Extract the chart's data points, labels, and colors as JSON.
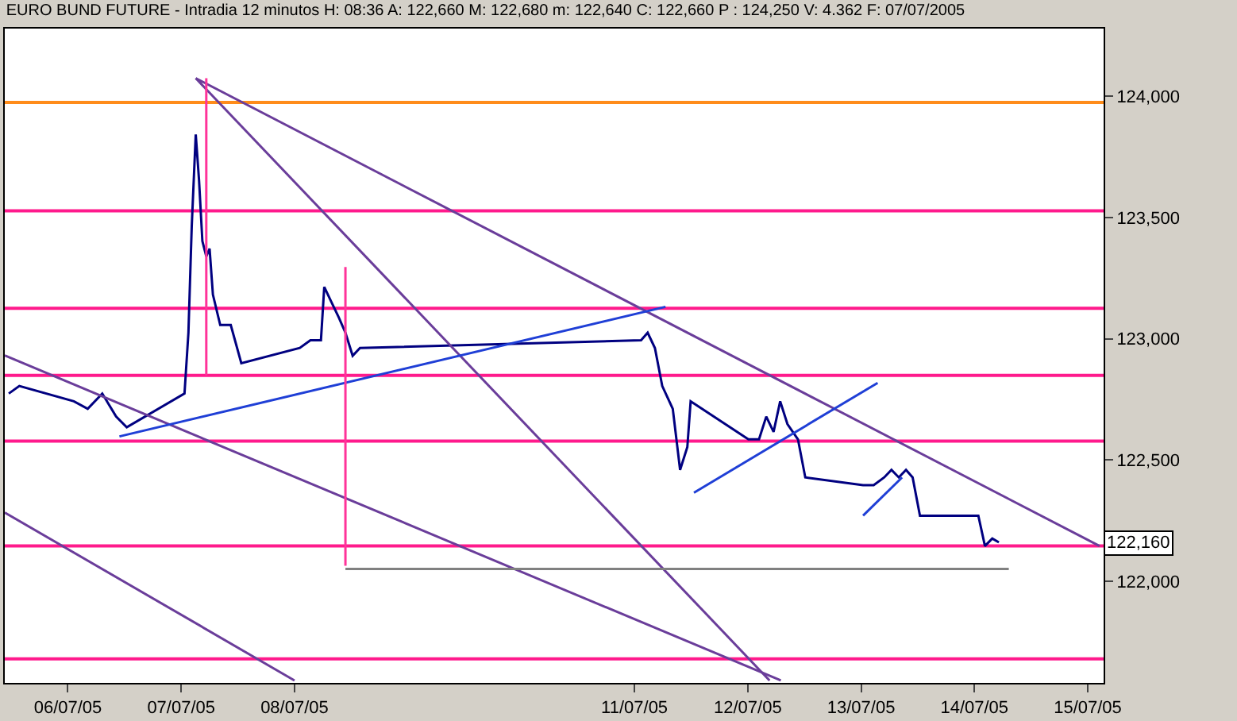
{
  "chart_data": {
    "type": "line",
    "title": "EURO BUND FUTURE - Intradia 12 minutos H: 08:36 A: 122,660 M: 122,680 m: 122,640 C: 122,660 P : 124,250 V: 4.362 F: 07/07/2005",
    "xlim": [
      "2005-07-05T18:38",
      "2005-07-15T11:22"
    ],
    "ylim": [
      121580,
      124280
    ],
    "xticks": [
      {
        "value": "2005-07-06T08:00",
        "label": "06/07/05"
      },
      {
        "value": "2005-07-07T08:00",
        "label": "07/07/05"
      },
      {
        "value": "2005-07-08T08:00",
        "label": "08/07/05"
      },
      {
        "value": "2005-07-11T08:00",
        "label": "11/07/05"
      },
      {
        "value": "2005-07-12T08:00",
        "label": "12/07/05"
      },
      {
        "value": "2005-07-13T08:00",
        "label": "13/07/05"
      },
      {
        "value": "2005-07-14T08:00",
        "label": "14/07/05"
      },
      {
        "value": "2005-07-15T08:00",
        "label": "15/07/05"
      }
    ],
    "yticks": [
      {
        "value": 122000,
        "label": "122,000"
      },
      {
        "value": 122500,
        "label": "122,500"
      },
      {
        "value": 123000,
        "label": "123,000"
      },
      {
        "value": 123500,
        "label": "123,500"
      },
      {
        "value": 124000,
        "label": "124,000"
      }
    ],
    "series": [
      {
        "color": "#000080",
        "x": [
          "2005-07-05T19:29",
          "2005-07-05T21:43",
          "2005-07-06T09:16",
          "2005-07-06T12:12",
          "2005-07-06T15:17",
          "2005-07-06T18:13",
          "2005-07-06T20:28",
          "2005-07-07T08:42",
          "2005-07-07T09:32",
          "2005-07-07T10:14",
          "2005-07-07T11:05",
          "2005-07-07T11:47",
          "2005-07-07T12:29",
          "2005-07-07T13:19",
          "2005-07-07T14:01",
          "2005-07-07T14:43",
          "2005-07-07T16:16",
          "2005-07-07T18:30",
          "2005-07-07T20:44",
          "2005-07-08T09:07",
          "2005-07-08T11:22",
          "2005-07-08T13:36",
          "2005-07-08T14:18",
          "2005-07-08T15:50",
          "2005-07-08T17:23",
          "2005-07-08T18:47",
          "2005-07-08T20:19",
          "2005-07-08T21:52",
          "2005-07-11T09:24",
          "2005-07-11T10:48",
          "2005-07-11T12:20",
          "2005-07-11T13:53",
          "2005-07-11T16:07",
          "2005-07-11T17:40",
          "2005-07-11T19:12",
          "2005-07-11T19:54",
          "2005-07-12T08:08",
          "2005-07-12T10:23",
          "2005-07-12T11:55",
          "2005-07-12T13:28",
          "2005-07-12T14:52",
          "2005-07-12T16:24",
          "2005-07-12T18:38",
          "2005-07-12T20:11",
          "2005-07-13T08:25",
          "2005-07-13T10:40",
          "2005-07-13T12:54",
          "2005-07-13T14:26",
          "2005-07-13T15:59",
          "2005-07-13T17:31",
          "2005-07-13T18:55",
          "2005-07-13T20:28",
          "2005-07-14T08:50",
          "2005-07-14T10:14",
          "2005-07-14T11:47",
          "2005-07-14T13:11"
        ],
        "values": [
          122774,
          122805,
          122742,
          122711,
          122774,
          122679,
          122635,
          122774,
          123025,
          123465,
          123843,
          123654,
          123403,
          123340,
          123372,
          123182,
          123057,
          123057,
          122899,
          122962,
          122994,
          122994,
          123214,
          123151,
          123088,
          123025,
          122930,
          122962,
          122994,
          123025,
          122962,
          122805,
          122711,
          122459,
          122553,
          122742,
          122585,
          122585,
          122679,
          122616,
          122742,
          122648,
          122585,
          122428,
          122396,
          122396,
          122428,
          122459,
          122428,
          122459,
          122428,
          122270,
          122270,
          122145,
          122176,
          122160
        ]
      },
      {
        "type": "line",
        "color": "#6a3d9a",
        "x": [
          "2005-07-07T11:05",
          "2005-07-15T10:31"
        ],
        "values": [
          124075,
          122145
        ]
      },
      {
        "type": "line",
        "color": "#6a3d9a",
        "x": [
          "2005-07-07T11:05",
          "2005-07-12T12:37"
        ],
        "values": [
          124075,
          121590
        ]
      },
      {
        "type": "line",
        "color": "#6a3d9a",
        "x": [
          "2005-07-05T18:38",
          "2005-07-12T15:00"
        ],
        "values": [
          122931,
          121590
        ]
      },
      {
        "type": "line",
        "color": "#6a3d9a",
        "x": [
          "2005-07-05T18:38",
          "2005-07-08T08:00"
        ],
        "values": [
          122283,
          121590
        ]
      },
      {
        "type": "line",
        "color": "#1f3fd6",
        "x": [
          "2005-07-06T18:55",
          "2005-07-11T14:35"
        ],
        "values": [
          122597,
          123132
        ]
      },
      {
        "type": "line",
        "color": "#1f3fd6",
        "x": [
          "2005-07-11T20:36",
          "2005-07-13T11:30"
        ],
        "values": [
          122365,
          122818
        ]
      },
      {
        "type": "line",
        "color": "#1f3fd6",
        "x": [
          "2005-07-13T08:25",
          "2005-07-13T16:41"
        ],
        "values": [
          122270,
          122428
        ]
      },
      {
        "type": "line",
        "color": "#808080",
        "x": [
          "2005-07-08T18:47",
          "2005-07-14T15:17"
        ],
        "values": [
          122050,
          122050
        ]
      },
      {
        "type": "line",
        "color": "#ff3399",
        "x": [
          "2005-07-07T13:19",
          "2005-07-07T13:19"
        ],
        "values": [
          124075,
          122849
        ]
      },
      {
        "type": "line",
        "color": "#ff3399",
        "x": [
          "2005-07-08T18:47",
          "2005-07-08T18:47"
        ],
        "values": [
          123296,
          122063
        ]
      }
    ],
    "ref_lines": [
      {
        "axis": "y",
        "value": 123975,
        "color": "#ff8c1a"
      },
      {
        "axis": "y",
        "value": 123528,
        "color": "#ff1a8c"
      },
      {
        "axis": "y",
        "value": 123126,
        "color": "#ff1a8c"
      },
      {
        "axis": "y",
        "value": 122849,
        "color": "#ff1a8c"
      },
      {
        "axis": "y",
        "value": 122578,
        "color": "#ff1a8c"
      },
      {
        "axis": "y",
        "value": 122145,
        "color": "#ff1a8c"
      },
      {
        "axis": "y",
        "value": 121679,
        "color": "#ff1a8c"
      }
    ],
    "annotations": [
      {
        "text": "122,160",
        "x": "2005-07-15T11:22",
        "y": 122160
      }
    ]
  }
}
